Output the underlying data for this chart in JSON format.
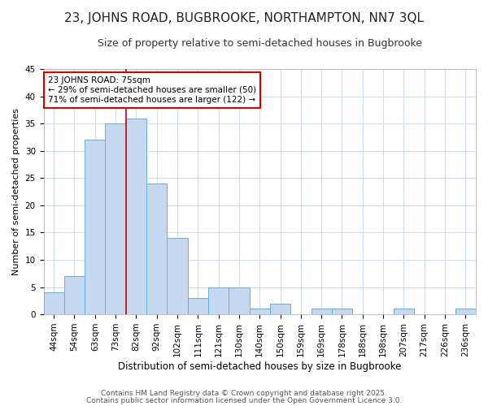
{
  "title": "23, JOHNS ROAD, BUGBROOKE, NORTHAMPTON, NN7 3QL",
  "subtitle": "Size of property relative to semi-detached houses in Bugbrooke",
  "xlabel": "Distribution of semi-detached houses by size in Bugbrooke",
  "ylabel": "Number of semi-detached properties",
  "categories": [
    "44sqm",
    "54sqm",
    "63sqm",
    "73sqm",
    "82sqm",
    "92sqm",
    "102sqm",
    "111sqm",
    "121sqm",
    "130sqm",
    "140sqm",
    "150sqm",
    "159sqm",
    "169sqm",
    "178sqm",
    "188sqm",
    "198sqm",
    "207sqm",
    "217sqm",
    "226sqm",
    "236sqm"
  ],
  "values": [
    4,
    7,
    32,
    35,
    36,
    24,
    14,
    3,
    5,
    5,
    1,
    2,
    0,
    1,
    1,
    0,
    0,
    1,
    0,
    0,
    1
  ],
  "bar_color": "#c5d8f0",
  "bar_edge_color": "#6baed6",
  "background_color": "#ffffff",
  "plot_bg_color": "#ffffff",
  "grid_color": "#d0dce8",
  "vline_color": "#cc0000",
  "annotation_title": "23 JOHNS ROAD: 75sqm",
  "annotation_line1": "← 29% of semi-detached houses are smaller (50)",
  "annotation_line2": "71% of semi-detached houses are larger (122) →",
  "annotation_box_color": "#ffffff",
  "annotation_box_edge": "#cc0000",
  "ylim": [
    0,
    45
  ],
  "yticks": [
    0,
    5,
    10,
    15,
    20,
    25,
    30,
    35,
    40,
    45
  ],
  "footer1": "Contains HM Land Registry data © Crown copyright and database right 2025.",
  "footer2": "Contains public sector information licensed under the Open Government Licence 3.0.",
  "title_fontsize": 11,
  "subtitle_fontsize": 9,
  "ylabel_fontsize": 8,
  "xlabel_fontsize": 8.5,
  "tick_fontsize": 7.5,
  "footer_fontsize": 6.5
}
